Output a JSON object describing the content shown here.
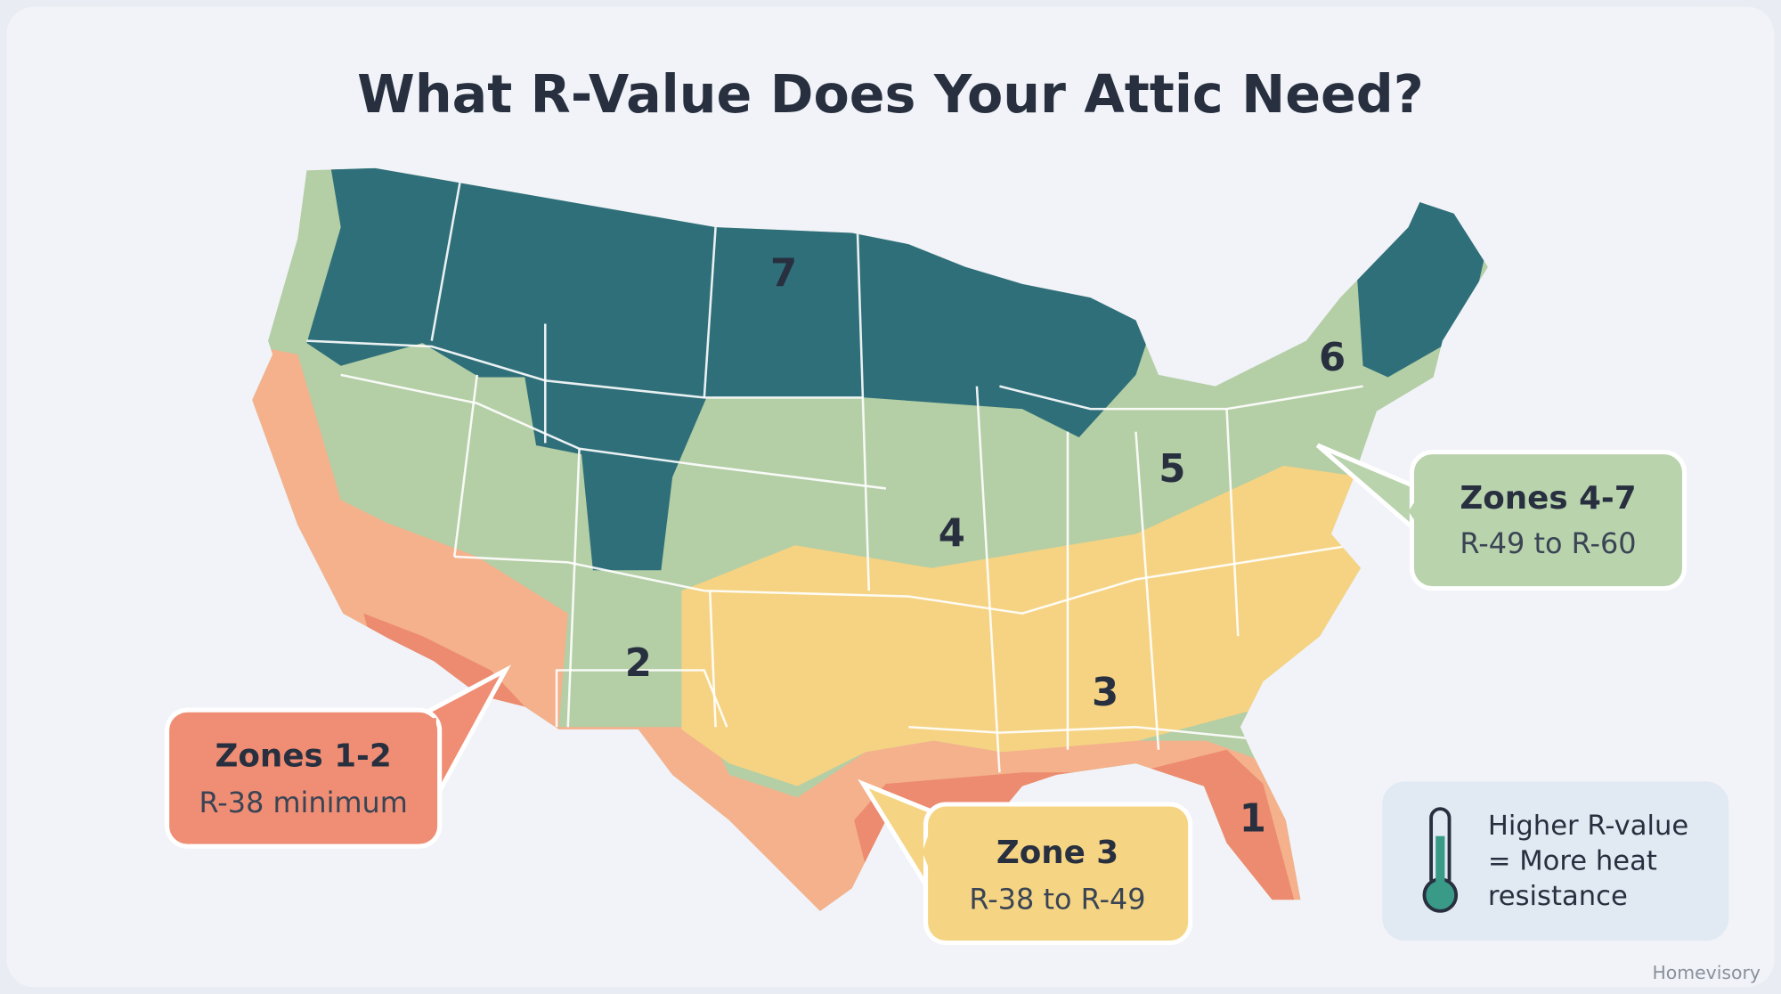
{
  "title": "What R-Value Does Your Attic Need?",
  "zone_labels": [
    "7",
    "6",
    "5",
    "4",
    "3",
    "2",
    "1"
  ],
  "callouts": [
    {
      "title": "Zones 4-7",
      "detail": "R-49 to R-60"
    },
    {
      "title": "Zones 1-2",
      "detail": "R-38 minimum"
    },
    {
      "title": "Zone 3",
      "detail": "R-38 to R-49"
    }
  ],
  "legend": {
    "lines": [
      "Higher R-value",
      "= More heat",
      "resistance"
    ]
  },
  "brand": "Homevisory"
}
